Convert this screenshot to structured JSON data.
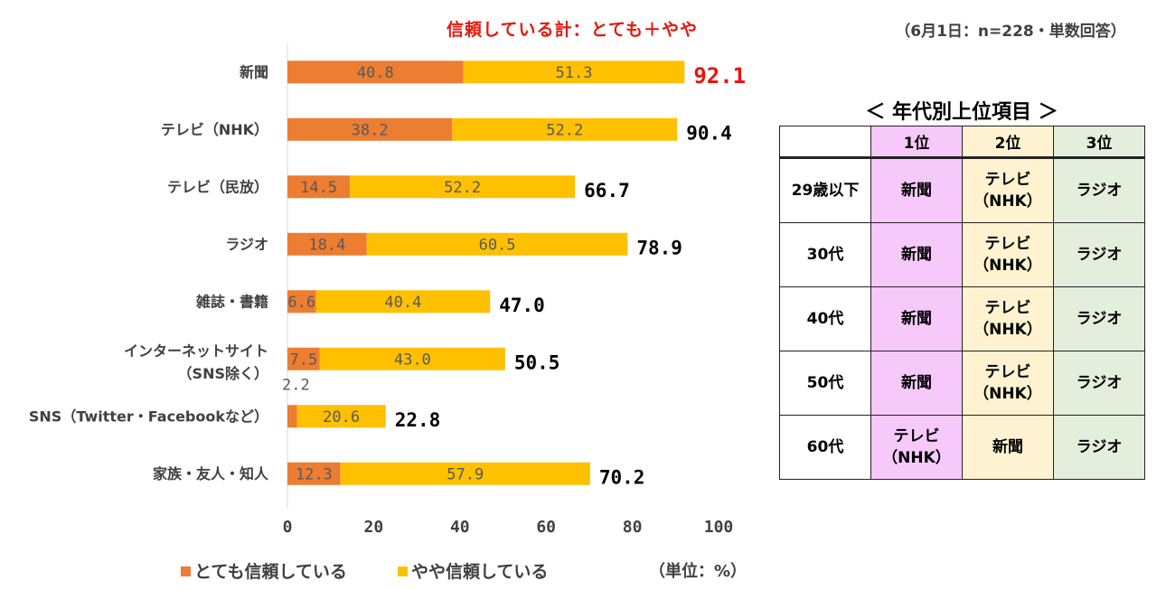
{
  "header": {
    "title": "信頼している計：とても＋やや",
    "subtitle": "（6月1日：n=228・単数回答）"
  },
  "colors": {
    "very": "#ed7d31",
    "somewhat": "#ffc000",
    "total_highlight": "#e8160c"
  },
  "chart_data": {
    "type": "bar",
    "orientation": "horizontal",
    "stacked": true,
    "categories": [
      [
        "新聞"
      ],
      [
        "テレビ（NHK）"
      ],
      [
        "テレビ（民放）"
      ],
      [
        "ラジオ"
      ],
      [
        "雑誌・書籍"
      ],
      [
        "インターネットサイト",
        "（SNS除く）"
      ],
      [
        "SNS（Twitter・Facebookなど）"
      ],
      [
        "家族・友人・知人"
      ]
    ],
    "series": [
      {
        "name": "とても信頼している",
        "values": [
          40.8,
          38.2,
          14.5,
          18.4,
          6.6,
          7.5,
          2.2,
          12.3
        ]
      },
      {
        "name": "やや信頼している",
        "values": [
          51.3,
          52.2,
          52.2,
          60.5,
          40.4,
          43.0,
          20.6,
          57.9
        ]
      }
    ],
    "totals": [
      92.1,
      90.4,
      66.7,
      78.9,
      47.0,
      50.5,
      22.8,
      70.2
    ],
    "xlim": [
      0,
      100
    ],
    "xticks": [
      0,
      20,
      40,
      60,
      80,
      100
    ],
    "legend_position": "bottom",
    "unit_label": "（単位：%）"
  },
  "ranking_table": {
    "title": "＜ 年代別上位項目 ＞",
    "headers": [
      "",
      "1位",
      "2位",
      "3位"
    ],
    "rows": [
      {
        "age": "29歳以下",
        "r1": [
          "新聞"
        ],
        "r2": [
          "テレビ",
          "（NHK）"
        ],
        "r3": [
          "ラジオ"
        ]
      },
      {
        "age": "30代",
        "r1": [
          "新聞"
        ],
        "r2": [
          "テレビ",
          "（NHK）"
        ],
        "r3": [
          "ラジオ"
        ]
      },
      {
        "age": "40代",
        "r1": [
          "新聞"
        ],
        "r2": [
          "テレビ",
          "（NHK）"
        ],
        "r3": [
          "ラジオ"
        ]
      },
      {
        "age": "50代",
        "r1": [
          "新聞"
        ],
        "r2": [
          "テレビ",
          "（NHK）"
        ],
        "r3": [
          "ラジオ"
        ]
      },
      {
        "age": "60代",
        "r1": [
          "テレビ",
          "（NHK）"
        ],
        "r2": [
          "新聞"
        ],
        "r3": [
          "ラジオ"
        ]
      }
    ]
  }
}
